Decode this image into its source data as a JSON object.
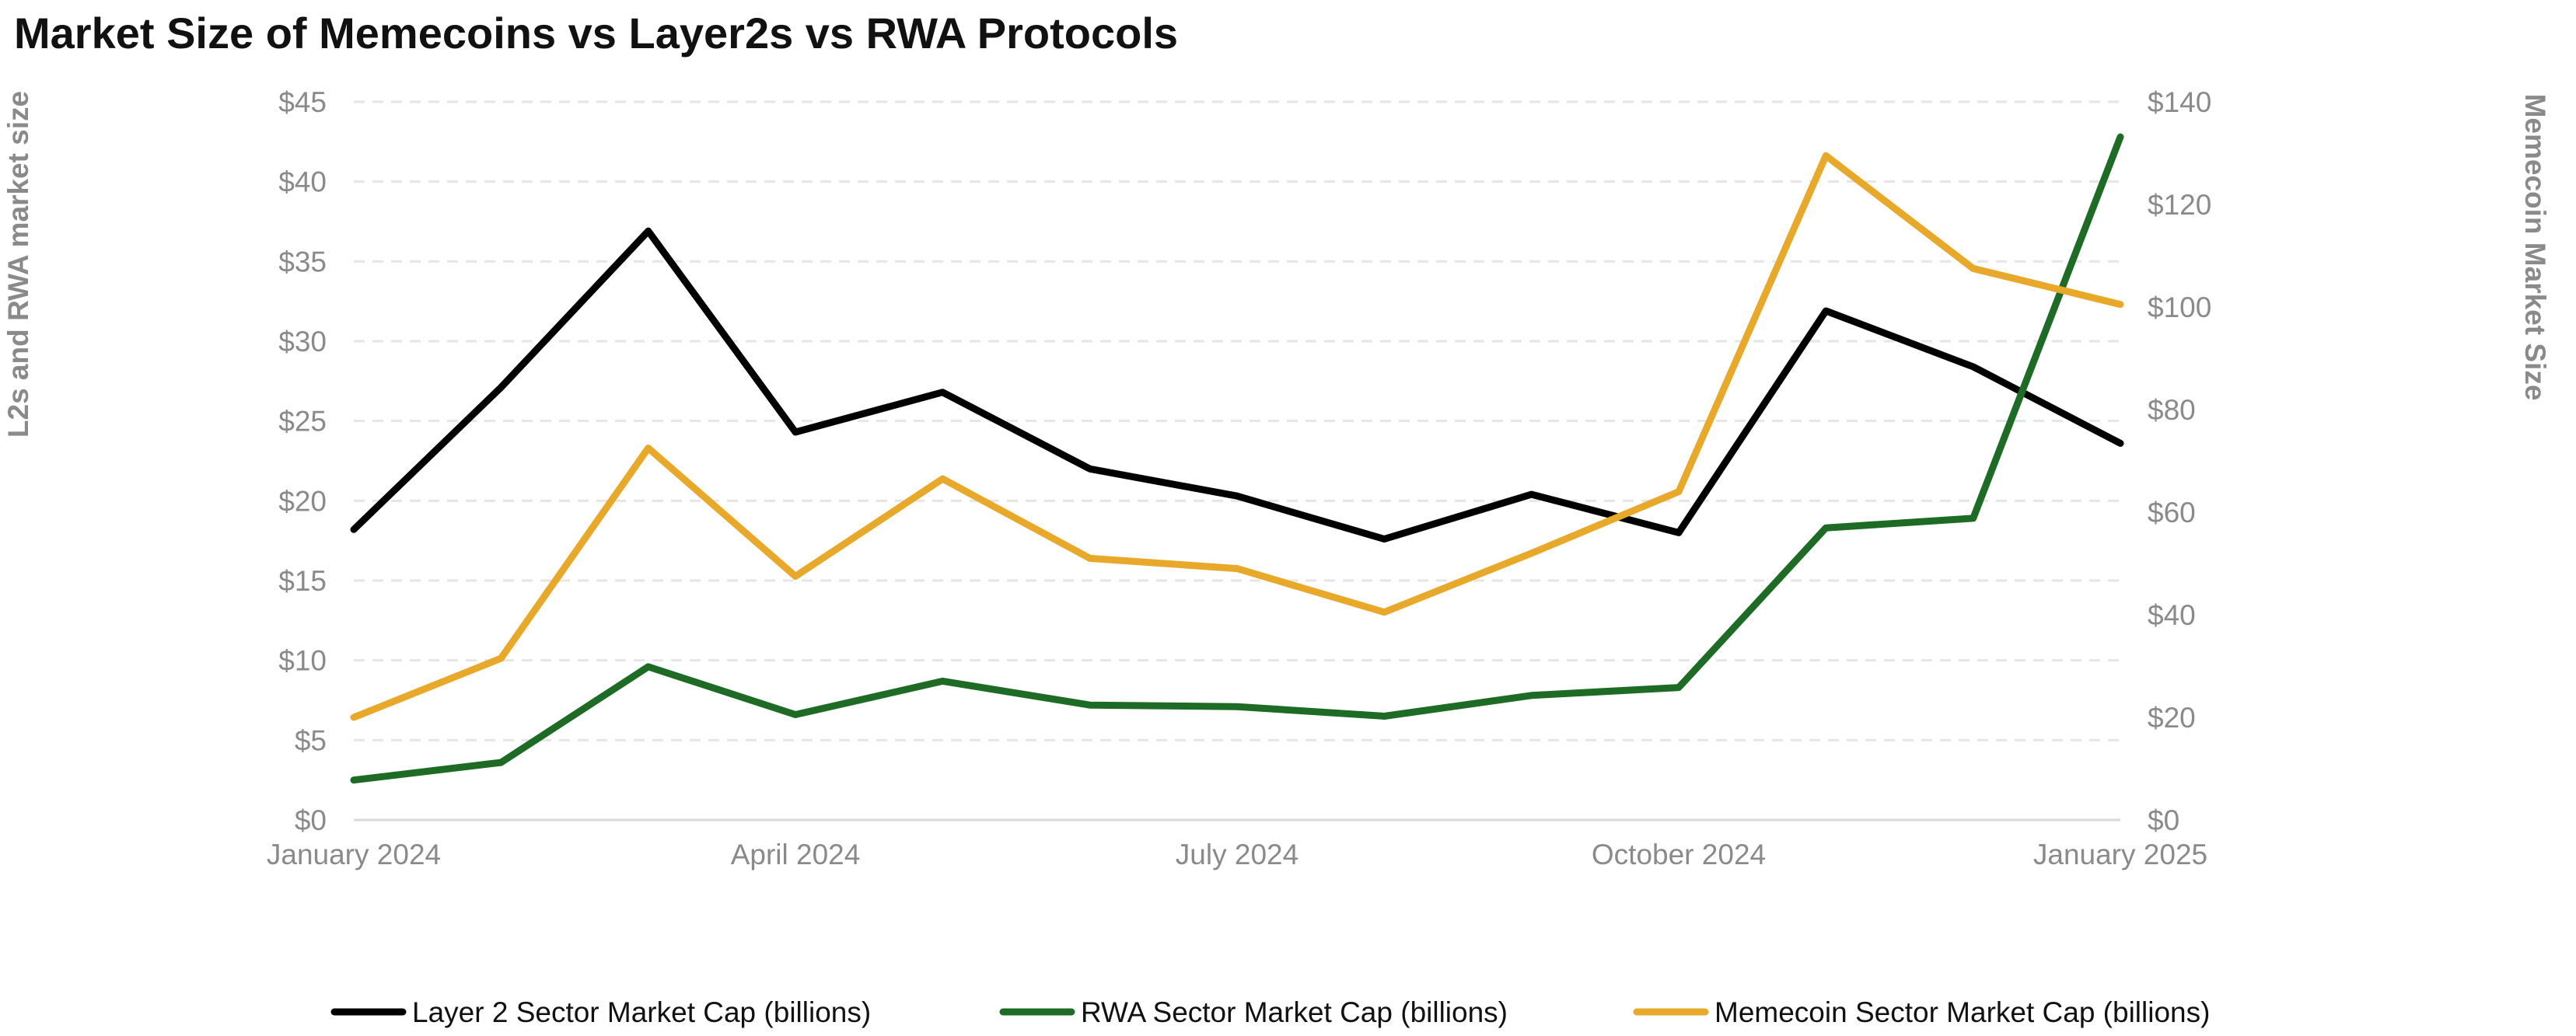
{
  "chart_data": {
    "type": "line",
    "title": "Market Size of Memecoins vs Layer2s vs RWA Protocols",
    "x": [
      "Jan 2024",
      "Feb 2024",
      "Mar 2024",
      "Apr 2024",
      "May 2024",
      "Jun 2024",
      "Jul 2024",
      "Aug 2024",
      "Sep 2024",
      "Oct 2024",
      "Nov 2024",
      "Dec 2024",
      "Jan 2025"
    ],
    "xticks": [
      "January 2024",
      "April 2024",
      "July 2024",
      "October 2024",
      "January 2025"
    ],
    "xtick_indices": [
      0,
      3,
      6,
      9,
      12
    ],
    "left_axis": {
      "label": "L2s and RWA market size",
      "ylim": [
        0,
        45
      ],
      "tick_values": [
        0,
        5,
        10,
        15,
        20,
        25,
        30,
        35,
        40,
        45
      ],
      "tick_labels": [
        "$0",
        "$5",
        "$10",
        "$15",
        "$20",
        "$25",
        "$30",
        "$35",
        "$40",
        "$45"
      ]
    },
    "right_axis": {
      "label": "Memecoin Market Size",
      "ylim": [
        0,
        140
      ],
      "tick_values": [
        0,
        20,
        40,
        60,
        80,
        100,
        120,
        140
      ],
      "tick_labels": [
        "$0",
        "$20",
        "$40",
        "$60",
        "$80",
        "$100",
        "$120",
        "$140"
      ]
    },
    "grid": true,
    "legend_position": "bottom",
    "series": [
      {
        "name": "Layer 2 Sector Market Cap (billions)",
        "axis": "left",
        "color": "#000000",
        "values": [
          18.2,
          27.1,
          36.9,
          24.3,
          26.8,
          22.0,
          20.3,
          17.6,
          20.4,
          18.0,
          31.9,
          28.4,
          23.6
        ]
      },
      {
        "name": "RWA Sector Market Cap (billions)",
        "axis": "left",
        "color": "#1e6b25",
        "values": [
          2.5,
          3.6,
          9.6,
          6.6,
          8.7,
          7.2,
          7.1,
          6.5,
          7.8,
          8.3,
          18.3,
          18.9,
          42.8
        ]
      },
      {
        "name": "Memecoin Sector Market Cap (billions)",
        "axis": "right",
        "color": "#e8a92b",
        "values": [
          20,
          31.5,
          72.5,
          47.5,
          66.5,
          51,
          49,
          40.5,
          52,
          64,
          129.5,
          107.5,
          100.5
        ]
      }
    ]
  }
}
